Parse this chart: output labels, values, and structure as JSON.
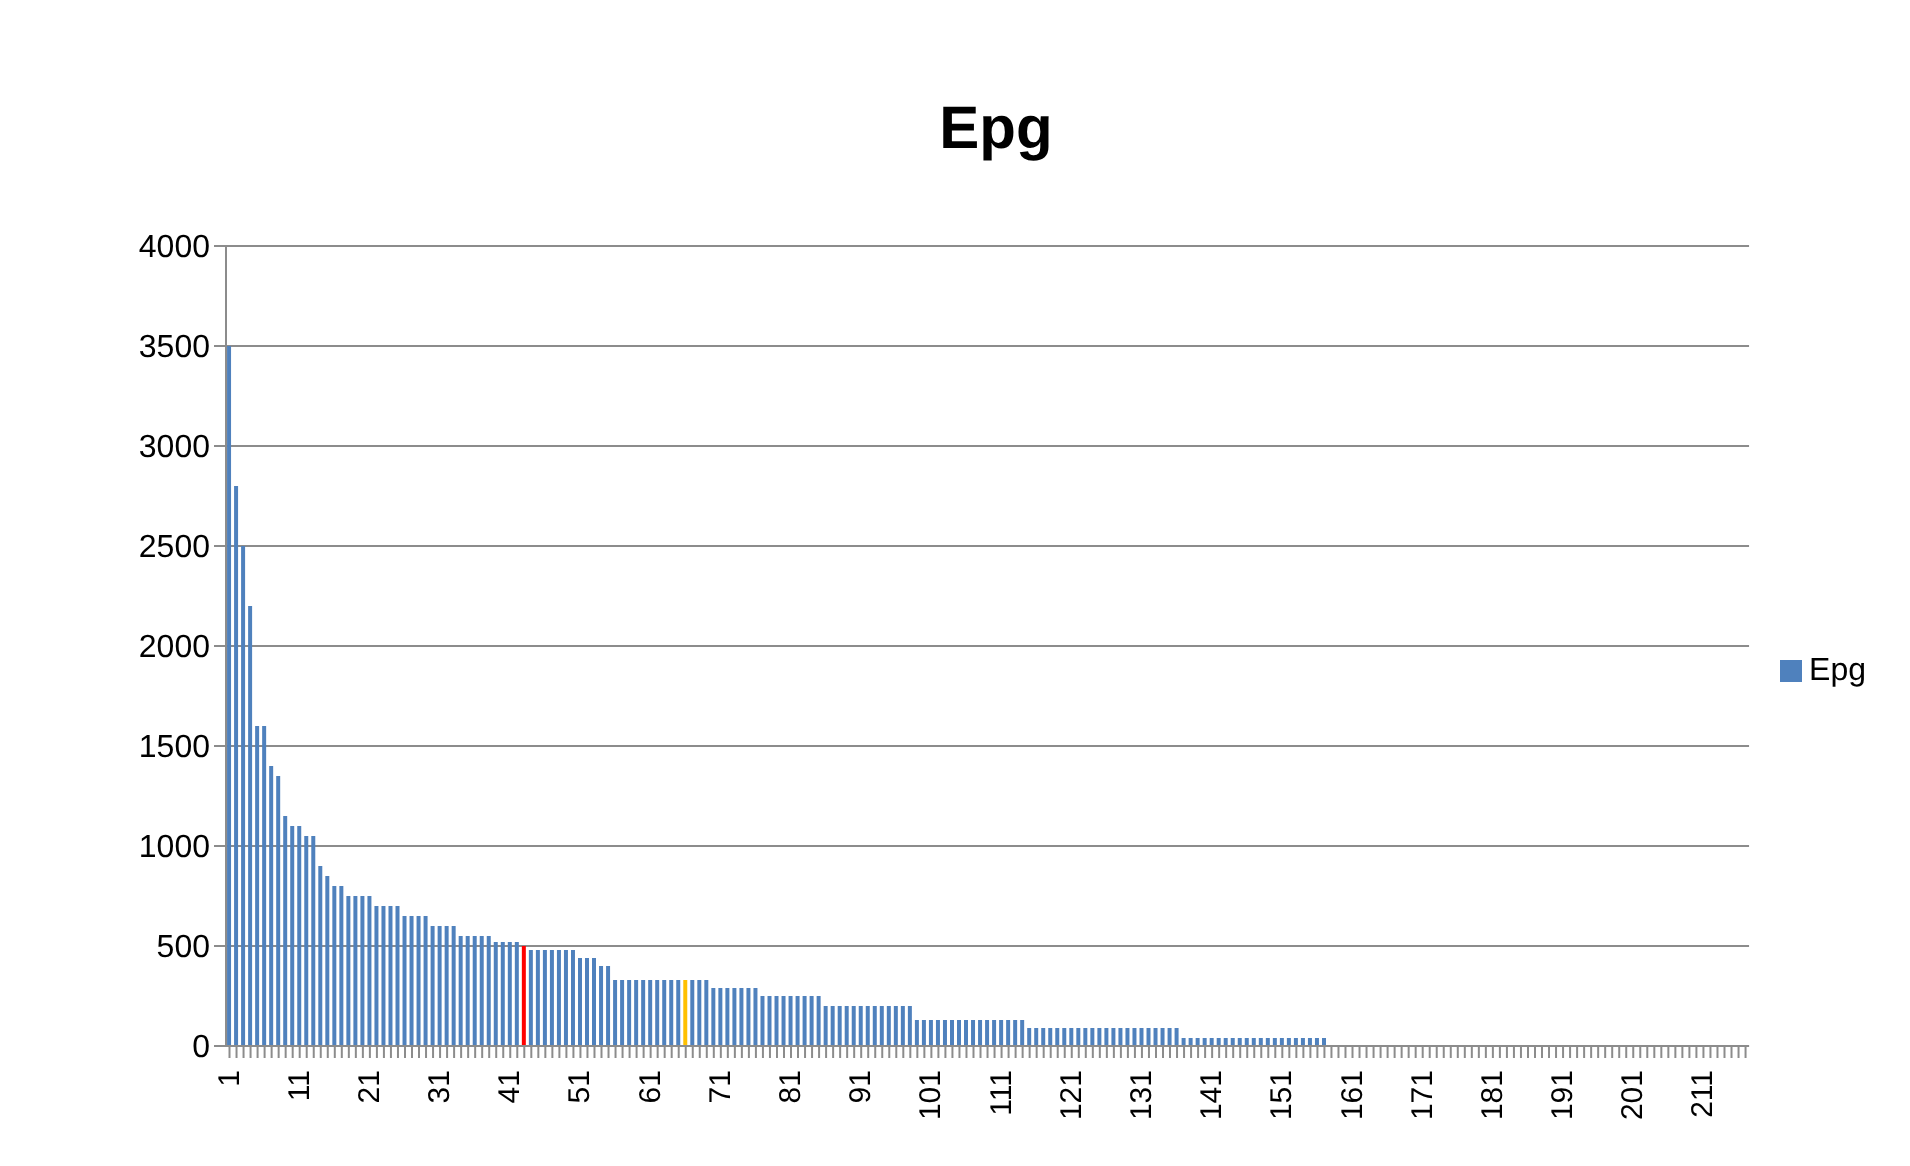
{
  "chart_data": {
    "type": "bar",
    "title": "Epg",
    "categories": [
      "1",
      null,
      null,
      null,
      null,
      null,
      null,
      null,
      null,
      null,
      "11",
      null,
      null,
      null,
      null,
      null,
      null,
      null,
      null,
      null,
      "21",
      null,
      null,
      null,
      null,
      null,
      null,
      null,
      null,
      null,
      "31",
      null,
      null,
      null,
      null,
      null,
      null,
      null,
      null,
      null,
      "41",
      null,
      null,
      null,
      null,
      null,
      null,
      null,
      null,
      null,
      "51",
      null,
      null,
      null,
      null,
      null,
      null,
      null,
      null,
      null,
      "61",
      null,
      null,
      null,
      null,
      null,
      null,
      null,
      null,
      null,
      "71",
      null,
      null,
      null,
      null,
      null,
      null,
      null,
      null,
      null,
      "81",
      null,
      null,
      null,
      null,
      null,
      null,
      null,
      null,
      null,
      "91",
      null,
      null,
      null,
      null,
      null,
      null,
      null,
      null,
      null,
      "101",
      null,
      null,
      null,
      null,
      null,
      null,
      null,
      null,
      null,
      "111",
      null,
      null,
      null,
      null,
      null,
      null,
      null,
      null,
      null,
      "121",
      null,
      null,
      null,
      null,
      null,
      null,
      null,
      null,
      null,
      "131",
      null,
      null,
      null,
      null,
      null,
      null,
      null,
      null,
      null,
      "141",
      null,
      null,
      null,
      null,
      null,
      null,
      null,
      null,
      null,
      "151",
      null,
      null,
      null,
      null,
      null,
      null,
      null,
      null,
      null,
      "161",
      null,
      null,
      null,
      null,
      null,
      null,
      null,
      null,
      null,
      "171",
      null,
      null,
      null,
      null,
      null,
      null,
      null,
      null,
      null,
      "181",
      null,
      null,
      null,
      null,
      null,
      null,
      null,
      null,
      null,
      "191",
      null,
      null,
      null,
      null,
      null,
      null,
      null,
      null,
      null,
      "201",
      null,
      null,
      null,
      null,
      null,
      null,
      null,
      null,
      null,
      "211",
      null,
      null,
      null,
      null,
      null,
      null
    ],
    "series": [
      {
        "name": "Epg",
        "color": "#4f81bd",
        "values": [
          3500,
          2800,
          2500,
          2200,
          1600,
          1600,
          1400,
          1350,
          1150,
          1100,
          1100,
          1050,
          1050,
          900,
          850,
          800,
          800,
          750,
          750,
          750,
          750,
          700,
          700,
          700,
          700,
          650,
          650,
          650,
          650,
          600,
          600,
          600,
          600,
          550,
          550,
          550,
          550,
          550,
          520,
          520,
          520,
          520,
          500,
          480,
          480,
          480,
          480,
          480,
          480,
          480,
          440,
          440,
          440,
          400,
          400,
          330,
          330,
          330,
          330,
          330,
          330,
          330,
          330,
          330,
          330,
          330,
          330,
          330,
          330,
          290,
          290,
          290,
          290,
          290,
          290,
          290,
          250,
          250,
          250,
          250,
          250,
          250,
          250,
          250,
          250,
          200,
          200,
          200,
          200,
          200,
          200,
          200,
          200,
          200,
          200,
          200,
          200,
          200,
          130,
          130,
          130,
          130,
          130,
          130,
          130,
          130,
          130,
          130,
          130,
          130,
          130,
          130,
          130,
          130,
          90,
          90,
          90,
          90,
          90,
          90,
          90,
          90,
          90,
          90,
          90,
          90,
          90,
          90,
          90,
          90,
          90,
          90,
          90,
          90,
          90,
          90,
          40,
          40,
          40,
          40,
          40,
          40,
          40,
          40,
          40,
          40,
          40,
          40,
          40,
          40,
          40,
          40,
          40,
          40,
          40,
          40,
          40,
          0,
          0,
          0,
          0,
          0,
          0,
          0,
          0,
          0,
          0,
          0,
          0,
          0,
          0,
          0,
          0,
          0,
          0,
          0,
          0,
          0,
          0,
          0,
          0,
          0,
          0,
          0,
          0,
          0,
          0,
          0,
          0,
          0,
          0,
          0,
          0,
          0,
          0,
          0,
          0,
          0,
          0,
          0,
          0,
          0,
          0,
          0,
          0,
          0,
          0,
          0,
          0,
          0,
          0,
          0,
          0,
          0,
          0,
          0,
          0
        ],
        "colors": [
          "#4f81bd",
          "#4f81bd",
          "#4f81bd",
          "#4f81bd",
          "#4f81bd",
          "#4f81bd",
          "#4f81bd",
          "#4f81bd",
          "#4f81bd",
          "#4f81bd",
          "#4f81bd",
          "#4f81bd",
          "#4f81bd",
          "#4f81bd",
          "#4f81bd",
          "#4f81bd",
          "#4f81bd",
          "#4f81bd",
          "#4f81bd",
          "#4f81bd",
          "#4f81bd",
          "#4f81bd",
          "#4f81bd",
          "#4f81bd",
          "#4f81bd",
          "#4f81bd",
          "#4f81bd",
          "#4f81bd",
          "#4f81bd",
          "#4f81bd",
          "#4f81bd",
          "#4f81bd",
          "#4f81bd",
          "#4f81bd",
          "#4f81bd",
          "#4f81bd",
          "#4f81bd",
          "#4f81bd",
          "#4f81bd",
          "#4f81bd",
          "#4f81bd",
          "#4f81bd",
          "#ff0000",
          "#4f81bd",
          "#4f81bd",
          "#4f81bd",
          "#4f81bd",
          "#4f81bd",
          "#4f81bd",
          "#4f81bd",
          "#4f81bd",
          "#4f81bd",
          "#4f81bd",
          "#4f81bd",
          "#4f81bd",
          "#4f81bd",
          "#4f81bd",
          "#4f81bd",
          "#4f81bd",
          "#4f81bd",
          "#4f81bd",
          "#4f81bd",
          "#4f81bd",
          "#4f81bd",
          "#4f81bd",
          "#ffc000",
          "#4f81bd",
          "#4f81bd",
          "#4f81bd",
          "#4f81bd",
          "#4f81bd",
          "#4f81bd",
          "#4f81bd",
          "#4f81bd",
          "#4f81bd",
          "#4f81bd",
          "#4f81bd",
          "#4f81bd",
          "#4f81bd",
          "#4f81bd",
          "#4f81bd",
          "#4f81bd",
          "#4f81bd",
          "#4f81bd",
          "#4f81bd",
          "#4f81bd",
          "#4f81bd",
          "#4f81bd",
          "#4f81bd",
          "#4f81bd",
          "#4f81bd",
          "#4f81bd",
          "#4f81bd",
          "#4f81bd",
          "#4f81bd",
          "#4f81bd",
          "#4f81bd",
          "#4f81bd",
          "#4f81bd",
          "#4f81bd",
          "#4f81bd",
          "#4f81bd",
          "#4f81bd",
          "#4f81bd",
          "#4f81bd",
          "#4f81bd",
          "#4f81bd",
          "#4f81bd",
          "#4f81bd",
          "#4f81bd",
          "#4f81bd",
          "#4f81bd",
          "#4f81bd",
          "#4f81bd",
          "#4f81bd",
          "#4f81bd",
          "#4f81bd",
          "#4f81bd",
          "#4f81bd",
          "#4f81bd",
          "#4f81bd",
          "#4f81bd",
          "#4f81bd",
          "#4f81bd",
          "#4f81bd",
          "#4f81bd",
          "#4f81bd",
          "#4f81bd",
          "#4f81bd",
          "#4f81bd",
          "#4f81bd",
          "#4f81bd",
          "#4f81bd",
          "#4f81bd",
          "#4f81bd",
          "#4f81bd",
          "#4f81bd",
          "#4f81bd",
          "#4f81bd",
          "#4f81bd",
          "#4f81bd",
          "#4f81bd",
          "#4f81bd",
          "#4f81bd",
          "#4f81bd",
          "#4f81bd",
          "#4f81bd",
          "#4f81bd",
          "#4f81bd",
          "#4f81bd",
          "#4f81bd",
          "#4f81bd",
          "#4f81bd",
          "#4f81bd",
          "#4f81bd",
          "#4f81bd",
          "#4f81bd",
          "#4f81bd",
          "#4f81bd",
          "#4f81bd",
          "#4f81bd",
          "#4f81bd",
          "#4f81bd",
          "#4f81bd",
          "#4f81bd",
          "#4f81bd",
          "#4f81bd",
          "#4f81bd",
          "#4f81bd",
          "#4f81bd",
          "#4f81bd",
          "#4f81bd",
          "#4f81bd",
          "#4f81bd",
          "#4f81bd",
          "#4f81bd",
          "#4f81bd",
          "#4f81bd",
          "#4f81bd",
          "#4f81bd",
          "#4f81bd",
          "#4f81bd",
          "#4f81bd",
          "#4f81bd",
          "#4f81bd",
          "#4f81bd",
          "#4f81bd",
          "#4f81bd",
          "#4f81bd",
          "#4f81bd",
          "#4f81bd",
          "#4f81bd",
          "#4f81bd",
          "#4f81bd",
          "#4f81bd",
          "#4f81bd",
          "#4f81bd",
          "#4f81bd",
          "#4f81bd",
          "#4f81bd",
          "#4f81bd",
          "#4f81bd",
          "#4f81bd",
          "#4f81bd",
          "#4f81bd",
          "#4f81bd",
          "#4f81bd",
          "#4f81bd",
          "#4f81bd",
          "#4f81bd",
          "#4f81bd",
          "#4f81bd",
          "#4f81bd",
          "#4f81bd",
          "#4f81bd",
          "#4f81bd",
          "#4f81bd"
        ]
      }
    ],
    "ylim": [
      0,
      4000
    ],
    "yticks": [
      0,
      500,
      1000,
      1500,
      2000,
      2500,
      3000,
      3500,
      4000
    ],
    "grid": "y",
    "legend": "right"
  }
}
